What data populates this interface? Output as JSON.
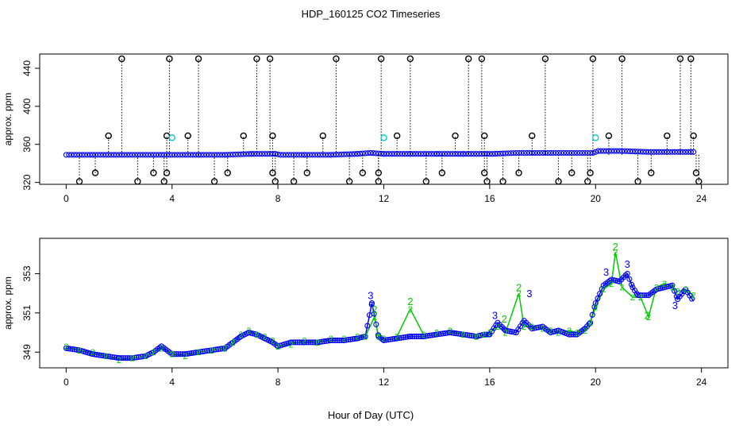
{
  "title": "HDP_160125  CO2 Timeseries",
  "xlabel": "Hour of Day (UTC)",
  "colors": {
    "black": "#000000",
    "blue": "#0000ff",
    "green": "#00cc00",
    "cyan": "#00cccc"
  },
  "chart_data": [
    {
      "type": "scatter",
      "panel": "top",
      "ylabel": "approx. ppm",
      "xlim": [
        -1,
        25
      ],
      "ylim": [
        318,
        455
      ],
      "x_ticks": [
        0,
        4,
        8,
        12,
        16,
        20,
        24
      ],
      "y_ticks": [
        320,
        360,
        400,
        440
      ],
      "grid": false,
      "legend": "none",
      "series": [
        {
          "marker": "circle",
          "color": "#0000ff",
          "style": "dense points",
          "x": [
            0.0,
            1.0,
            2.0,
            3.0,
            4.0,
            5.0,
            6.0,
            7.0,
            7.9,
            8.1,
            9.0,
            10.0,
            11.0,
            11.5,
            12.0,
            13.0,
            14.0,
            15.0,
            15.9,
            16.1,
            17.0,
            18.0,
            19.0,
            19.9,
            20.1,
            21.0,
            22.0,
            23.0,
            23.8
          ],
          "y": [
            349,
            349,
            349,
            349,
            349,
            349,
            349,
            350,
            350,
            349,
            349,
            349,
            350,
            351,
            350,
            350,
            350,
            350,
            350,
            350,
            351,
            351,
            351,
            351,
            353,
            353,
            352,
            352,
            352
          ]
        },
        {
          "marker": "circle",
          "color": "#000000",
          "style": "spikes with dotted drop lines",
          "x": [
            0.5,
            1.1,
            1.6,
            2.1,
            2.7,
            3.3,
            3.7,
            3.8,
            3.8,
            3.9,
            4.6,
            5.0,
            5.6,
            6.1,
            6.7,
            7.2,
            7.7,
            7.8,
            7.8,
            7.9,
            8.6,
            9.1,
            9.7,
            10.2,
            10.7,
            11.2,
            11.8,
            11.8,
            11.9,
            12.5,
            13.0,
            13.6,
            14.2,
            14.7,
            15.2,
            15.7,
            15.8,
            15.8,
            15.9,
            16.5,
            17.1,
            17.6,
            18.1,
            18.6,
            19.1,
            19.7,
            19.8,
            19.9,
            20.5,
            21.0,
            21.6,
            22.1,
            22.7,
            23.2,
            23.6,
            23.7,
            23.8,
            23.9
          ],
          "y": [
            321,
            330,
            369,
            450,
            321,
            330,
            321,
            330,
            369,
            450,
            369,
            450,
            321,
            330,
            369,
            450,
            450,
            369,
            330,
            321,
            321,
            330,
            369,
            450,
            321,
            330,
            321,
            330,
            450,
            369,
            450,
            321,
            330,
            369,
            450,
            450,
            330,
            369,
            321,
            321,
            330,
            369,
            450,
            321,
            330,
            321,
            330,
            450,
            369,
            450,
            321,
            330,
            369,
            450,
            450,
            369,
            330,
            321
          ]
        },
        {
          "marker": "circle",
          "color": "#00cccc",
          "style": "isolated points",
          "x": [
            4.0,
            12.0,
            20.0
          ],
          "y": [
            367,
            367,
            367
          ]
        }
      ]
    },
    {
      "type": "line",
      "panel": "bottom",
      "ylabel": "approx. ppm",
      "xlim": [
        -1,
        25
      ],
      "ylim": [
        348.2,
        354.8
      ],
      "x_ticks": [
        0,
        4,
        8,
        12,
        16,
        20,
        24
      ],
      "y_ticks": [
        349,
        351,
        353
      ],
      "grid": false,
      "legend": "none",
      "series": [
        {
          "marker": "circle",
          "color": "#0000ff",
          "x": [
            0.0,
            0.5,
            1.0,
            1.5,
            2.0,
            2.5,
            3.0,
            3.3,
            3.6,
            4.0,
            4.5,
            5.0,
            5.5,
            6.0,
            6.3,
            6.6,
            6.9,
            7.2,
            7.5,
            7.8,
            8.0,
            8.5,
            9.0,
            9.5,
            10.0,
            10.5,
            11.0,
            11.3,
            11.55,
            11.8,
            12.0,
            12.5,
            13.0,
            13.5,
            14.0,
            14.5,
            15.0,
            15.5,
            15.8,
            16.0,
            16.3,
            16.6,
            17.0,
            17.3,
            17.6,
            18.0,
            18.3,
            18.6,
            19.0,
            19.3,
            19.6,
            19.8,
            20.0,
            20.3,
            20.6,
            20.9,
            21.2,
            21.4,
            21.6,
            22.0,
            22.3,
            22.6,
            22.9,
            23.1,
            23.4,
            23.7
          ],
          "y": [
            349.2,
            349.1,
            348.9,
            348.8,
            348.7,
            348.7,
            348.8,
            349.0,
            349.3,
            348.9,
            348.9,
            349.0,
            349.1,
            349.2,
            349.5,
            349.8,
            350.0,
            349.9,
            349.7,
            349.5,
            349.3,
            349.5,
            349.5,
            349.5,
            349.6,
            349.6,
            349.7,
            349.8,
            351.5,
            349.8,
            349.6,
            349.7,
            349.8,
            349.8,
            349.9,
            350.0,
            349.9,
            349.8,
            349.9,
            349.9,
            350.5,
            350.1,
            350.0,
            350.6,
            350.2,
            350.3,
            350.0,
            350.1,
            349.9,
            349.9,
            350.2,
            350.5,
            351.5,
            352.4,
            352.7,
            352.6,
            353.0,
            352.3,
            351.9,
            351.9,
            352.2,
            352.3,
            352.4,
            351.7,
            352.2,
            351.6
          ]
        },
        {
          "marker": "digit 2",
          "color": "#00cc00",
          "x": [
            0.0,
            0.5,
            1.0,
            1.5,
            2.0,
            2.5,
            3.0,
            3.3,
            3.6,
            4.0,
            4.5,
            5.0,
            5.5,
            6.0,
            6.3,
            6.6,
            6.9,
            7.2,
            7.5,
            7.8,
            8.0,
            8.5,
            9.0,
            9.5,
            10.0,
            10.5,
            11.0,
            11.3,
            11.65,
            11.8,
            12.0,
            12.5,
            13.0,
            13.5,
            14.0,
            14.5,
            15.0,
            15.5,
            15.8,
            16.0,
            16.3,
            16.6,
            17.1,
            17.3,
            17.6,
            18.0,
            18.3,
            18.6,
            19.0,
            19.3,
            19.6,
            19.8,
            20.0,
            20.3,
            20.6,
            20.75,
            21.0,
            21.4,
            21.7,
            22.0,
            22.3,
            22.6,
            22.9,
            23.1,
            23.4,
            23.7
          ],
          "y": [
            349.3,
            349.1,
            349.0,
            348.8,
            348.6,
            348.7,
            348.8,
            349.0,
            349.2,
            348.9,
            348.8,
            349.0,
            349.1,
            349.2,
            349.5,
            349.9,
            350.1,
            349.9,
            349.8,
            349.6,
            349.3,
            349.4,
            349.6,
            349.5,
            349.7,
            349.7,
            349.8,
            349.8,
            350.8,
            349.8,
            349.7,
            349.8,
            351.2,
            349.9,
            350.0,
            350.1,
            349.9,
            349.8,
            349.9,
            350.0,
            350.3,
            350.0,
            352.0,
            350.3,
            350.3,
            350.2,
            350.1,
            350.0,
            350.1,
            350.0,
            350.1,
            350.5,
            351.3,
            352.2,
            352.5,
            354.1,
            352.3,
            351.8,
            351.8,
            350.8,
            352.3,
            352.5,
            352.3,
            352.1,
            352.2,
            351.9
          ]
        }
      ],
      "annotations": [
        {
          "text": "3",
          "x": 11.5,
          "y": 351.7,
          "color": "#0000ff"
        },
        {
          "text": "2",
          "x": 11.65,
          "y": 351.0,
          "color": "#00cc00"
        },
        {
          "text": "2",
          "x": 13.0,
          "y": 351.4,
          "color": "#00cc00"
        },
        {
          "text": "2",
          "x": 16.55,
          "y": 350.5,
          "color": "#00cc00"
        },
        {
          "text": "3",
          "x": 16.2,
          "y": 350.7,
          "color": "#0000ff"
        },
        {
          "text": "2",
          "x": 17.1,
          "y": 352.1,
          "color": "#00cc00"
        },
        {
          "text": "3",
          "x": 17.5,
          "y": 351.8,
          "color": "#0000ff"
        },
        {
          "text": "3",
          "x": 20.4,
          "y": 352.9,
          "color": "#0000ff"
        },
        {
          "text": "2",
          "x": 20.75,
          "y": 354.2,
          "color": "#00cc00"
        },
        {
          "text": "3",
          "x": 21.2,
          "y": 353.3,
          "color": "#0000ff"
        },
        {
          "text": "2",
          "x": 21.95,
          "y": 350.7,
          "color": "#00cc00"
        },
        {
          "text": "3",
          "x": 23.0,
          "y": 351.2,
          "color": "#0000ff"
        }
      ]
    }
  ]
}
